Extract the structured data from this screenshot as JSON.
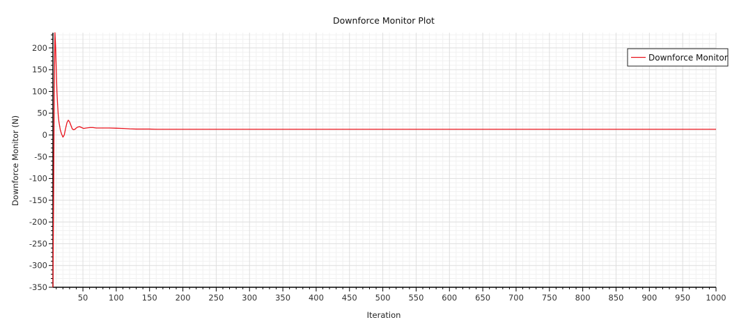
{
  "chart_data": {
    "type": "line",
    "title": "Downforce Monitor Plot",
    "xlabel": "Iteration",
    "ylabel": "Downforce Monitor (N)",
    "xlim": [
      5,
      1000
    ],
    "ylim": [
      -350,
      235
    ],
    "x_ticks": [
      50,
      100,
      150,
      200,
      250,
      300,
      350,
      400,
      450,
      500,
      550,
      600,
      650,
      700,
      750,
      800,
      850,
      900,
      950,
      1000
    ],
    "y_ticks": [
      200,
      150,
      100,
      50,
      0,
      -50,
      -100,
      -150,
      -200,
      -250,
      -300,
      -350
    ],
    "grid": true,
    "legend_position": "top-right",
    "series_color": "#e8101a",
    "series": [
      {
        "name": "Downforce Monitor",
        "x": [
          5,
          6,
          7,
          8,
          9,
          10,
          11,
          12,
          13,
          14,
          16,
          18,
          20,
          22,
          24,
          26,
          28,
          30,
          32,
          34,
          36,
          38,
          40,
          42,
          45,
          48,
          51,
          55,
          60,
          65,
          70,
          80,
          90,
          100,
          110,
          120,
          130,
          140,
          150,
          160,
          180,
          200,
          250,
          300,
          350,
          400,
          450,
          500,
          550,
          600,
          650,
          700,
          750,
          800,
          850,
          900,
          950,
          1000
        ],
        "y": [
          -350,
          -150,
          100,
          235,
          200,
          150,
          100,
          70,
          45,
          30,
          12,
          2,
          -5,
          0,
          15,
          28,
          34,
          30,
          22,
          14,
          12,
          13,
          16,
          18,
          19,
          17,
          15,
          16,
          17,
          17,
          16,
          16,
          16,
          15.5,
          15,
          14,
          13.5,
          13.5,
          13.5,
          13,
          13,
          13,
          13,
          13,
          13,
          13,
          13,
          13,
          13,
          13,
          13,
          13,
          13,
          13,
          13,
          13,
          13,
          13
        ]
      }
    ]
  }
}
